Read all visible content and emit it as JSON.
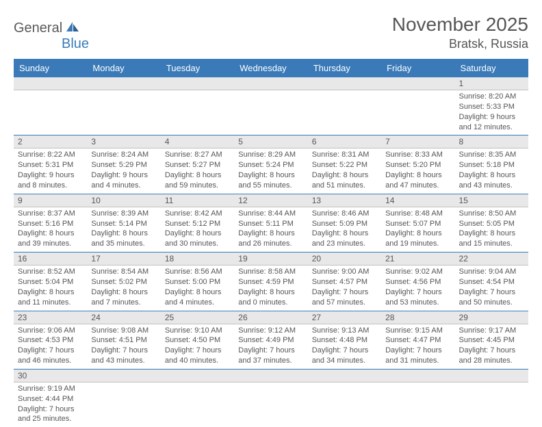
{
  "logo": {
    "general": "General",
    "blue": "Blue"
  },
  "title": "November 2025",
  "location": "Bratsk, Russia",
  "colors": {
    "header_bg": "#3a7ab8",
    "header_fg": "#ffffff",
    "daynum_bg": "#e8e8e8",
    "text": "#555555",
    "row_border": "#3a7ab8",
    "background": "#ffffff"
  },
  "day_headers": [
    "Sunday",
    "Monday",
    "Tuesday",
    "Wednesday",
    "Thursday",
    "Friday",
    "Saturday"
  ],
  "weeks": [
    [
      {
        "empty": true
      },
      {
        "empty": true
      },
      {
        "empty": true
      },
      {
        "empty": true
      },
      {
        "empty": true
      },
      {
        "empty": true
      },
      {
        "n": "1",
        "sr": "Sunrise: 8:20 AM",
        "ss": "Sunset: 5:33 PM",
        "d1": "Daylight: 9 hours",
        "d2": "and 12 minutes."
      }
    ],
    [
      {
        "n": "2",
        "sr": "Sunrise: 8:22 AM",
        "ss": "Sunset: 5:31 PM",
        "d1": "Daylight: 9 hours",
        "d2": "and 8 minutes."
      },
      {
        "n": "3",
        "sr": "Sunrise: 8:24 AM",
        "ss": "Sunset: 5:29 PM",
        "d1": "Daylight: 9 hours",
        "d2": "and 4 minutes."
      },
      {
        "n": "4",
        "sr": "Sunrise: 8:27 AM",
        "ss": "Sunset: 5:27 PM",
        "d1": "Daylight: 8 hours",
        "d2": "and 59 minutes."
      },
      {
        "n": "5",
        "sr": "Sunrise: 8:29 AM",
        "ss": "Sunset: 5:24 PM",
        "d1": "Daylight: 8 hours",
        "d2": "and 55 minutes."
      },
      {
        "n": "6",
        "sr": "Sunrise: 8:31 AM",
        "ss": "Sunset: 5:22 PM",
        "d1": "Daylight: 8 hours",
        "d2": "and 51 minutes."
      },
      {
        "n": "7",
        "sr": "Sunrise: 8:33 AM",
        "ss": "Sunset: 5:20 PM",
        "d1": "Daylight: 8 hours",
        "d2": "and 47 minutes."
      },
      {
        "n": "8",
        "sr": "Sunrise: 8:35 AM",
        "ss": "Sunset: 5:18 PM",
        "d1": "Daylight: 8 hours",
        "d2": "and 43 minutes."
      }
    ],
    [
      {
        "n": "9",
        "sr": "Sunrise: 8:37 AM",
        "ss": "Sunset: 5:16 PM",
        "d1": "Daylight: 8 hours",
        "d2": "and 39 minutes."
      },
      {
        "n": "10",
        "sr": "Sunrise: 8:39 AM",
        "ss": "Sunset: 5:14 PM",
        "d1": "Daylight: 8 hours",
        "d2": "and 35 minutes."
      },
      {
        "n": "11",
        "sr": "Sunrise: 8:42 AM",
        "ss": "Sunset: 5:12 PM",
        "d1": "Daylight: 8 hours",
        "d2": "and 30 minutes."
      },
      {
        "n": "12",
        "sr": "Sunrise: 8:44 AM",
        "ss": "Sunset: 5:11 PM",
        "d1": "Daylight: 8 hours",
        "d2": "and 26 minutes."
      },
      {
        "n": "13",
        "sr": "Sunrise: 8:46 AM",
        "ss": "Sunset: 5:09 PM",
        "d1": "Daylight: 8 hours",
        "d2": "and 23 minutes."
      },
      {
        "n": "14",
        "sr": "Sunrise: 8:48 AM",
        "ss": "Sunset: 5:07 PM",
        "d1": "Daylight: 8 hours",
        "d2": "and 19 minutes."
      },
      {
        "n": "15",
        "sr": "Sunrise: 8:50 AM",
        "ss": "Sunset: 5:05 PM",
        "d1": "Daylight: 8 hours",
        "d2": "and 15 minutes."
      }
    ],
    [
      {
        "n": "16",
        "sr": "Sunrise: 8:52 AM",
        "ss": "Sunset: 5:04 PM",
        "d1": "Daylight: 8 hours",
        "d2": "and 11 minutes."
      },
      {
        "n": "17",
        "sr": "Sunrise: 8:54 AM",
        "ss": "Sunset: 5:02 PM",
        "d1": "Daylight: 8 hours",
        "d2": "and 7 minutes."
      },
      {
        "n": "18",
        "sr": "Sunrise: 8:56 AM",
        "ss": "Sunset: 5:00 PM",
        "d1": "Daylight: 8 hours",
        "d2": "and 4 minutes."
      },
      {
        "n": "19",
        "sr": "Sunrise: 8:58 AM",
        "ss": "Sunset: 4:59 PM",
        "d1": "Daylight: 8 hours",
        "d2": "and 0 minutes."
      },
      {
        "n": "20",
        "sr": "Sunrise: 9:00 AM",
        "ss": "Sunset: 4:57 PM",
        "d1": "Daylight: 7 hours",
        "d2": "and 57 minutes."
      },
      {
        "n": "21",
        "sr": "Sunrise: 9:02 AM",
        "ss": "Sunset: 4:56 PM",
        "d1": "Daylight: 7 hours",
        "d2": "and 53 minutes."
      },
      {
        "n": "22",
        "sr": "Sunrise: 9:04 AM",
        "ss": "Sunset: 4:54 PM",
        "d1": "Daylight: 7 hours",
        "d2": "and 50 minutes."
      }
    ],
    [
      {
        "n": "23",
        "sr": "Sunrise: 9:06 AM",
        "ss": "Sunset: 4:53 PM",
        "d1": "Daylight: 7 hours",
        "d2": "and 46 minutes."
      },
      {
        "n": "24",
        "sr": "Sunrise: 9:08 AM",
        "ss": "Sunset: 4:51 PM",
        "d1": "Daylight: 7 hours",
        "d2": "and 43 minutes."
      },
      {
        "n": "25",
        "sr": "Sunrise: 9:10 AM",
        "ss": "Sunset: 4:50 PM",
        "d1": "Daylight: 7 hours",
        "d2": "and 40 minutes."
      },
      {
        "n": "26",
        "sr": "Sunrise: 9:12 AM",
        "ss": "Sunset: 4:49 PM",
        "d1": "Daylight: 7 hours",
        "d2": "and 37 minutes."
      },
      {
        "n": "27",
        "sr": "Sunrise: 9:13 AM",
        "ss": "Sunset: 4:48 PM",
        "d1": "Daylight: 7 hours",
        "d2": "and 34 minutes."
      },
      {
        "n": "28",
        "sr": "Sunrise: 9:15 AM",
        "ss": "Sunset: 4:47 PM",
        "d1": "Daylight: 7 hours",
        "d2": "and 31 minutes."
      },
      {
        "n": "29",
        "sr": "Sunrise: 9:17 AM",
        "ss": "Sunset: 4:45 PM",
        "d1": "Daylight: 7 hours",
        "d2": "and 28 minutes."
      }
    ],
    [
      {
        "n": "30",
        "sr": "Sunrise: 9:19 AM",
        "ss": "Sunset: 4:44 PM",
        "d1": "Daylight: 7 hours",
        "d2": "and 25 minutes."
      },
      {
        "empty": true
      },
      {
        "empty": true
      },
      {
        "empty": true
      },
      {
        "empty": true
      },
      {
        "empty": true
      },
      {
        "empty": true
      }
    ]
  ]
}
